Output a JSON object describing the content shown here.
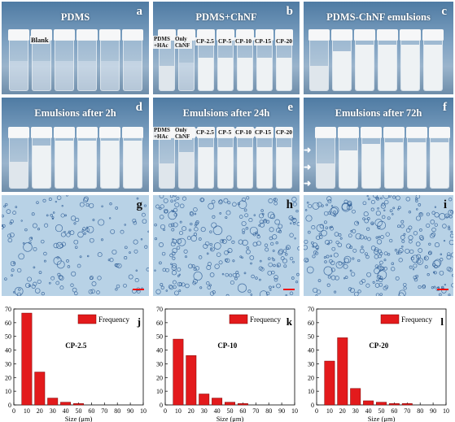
{
  "panels": {
    "a": {
      "title": "PDMS",
      "letter": "a",
      "vial_labels": [
        "Blank"
      ]
    },
    "b": {
      "title": "PDMS+ChNF",
      "letter": "b",
      "vial_labels": [
        "PDMS +HAc",
        "Only ChNF",
        "CP-2.5",
        "CP-5",
        "CP-10",
        "CP-15",
        "CP-20"
      ]
    },
    "c": {
      "title": "PDMS-ChNF emulsions",
      "letter": "c"
    },
    "d": {
      "title": "Emulsions after 2h",
      "letter": "d"
    },
    "e": {
      "title": "Emulsions after 24h",
      "letter": "e",
      "vial_labels": [
        "PDMS +HAc",
        "Only ChNF",
        "CP-2.5",
        "CP-5",
        "CP-10",
        "CP-15",
        "CP-20"
      ]
    },
    "f": {
      "title": "Emulsions after 72h",
      "letter": "f"
    },
    "g": {
      "letter": "g"
    },
    "h": {
      "letter": "h"
    },
    "i": {
      "letter": "i"
    }
  },
  "colors": {
    "bar": "#e31a1c",
    "scale_bar": "#ee1111",
    "micrograph_bg": "#b8d2e6",
    "bubble": "#1d4f8c"
  },
  "chart_data": [
    {
      "type": "bar",
      "panel": "j",
      "letter": "j",
      "annotation": "CP-2.5",
      "legend": "Frequency",
      "legend_position": "top-right",
      "x": [
        10,
        20,
        30,
        40,
        50,
        60,
        70,
        80,
        90,
        100
      ],
      "values": [
        67,
        24,
        5,
        2,
        1,
        0,
        0,
        0,
        0,
        0
      ],
      "xlabel": "",
      "ylabel": "",
      "xlim": [
        0,
        100
      ],
      "ylim": [
        0,
        70
      ],
      "xticks": [
        "0",
        "10",
        "20",
        "30",
        "40",
        "50",
        "60",
        "70",
        "80",
        "90",
        "10"
      ],
      "yticks": [
        "0",
        "10",
        "20",
        "30",
        "40",
        "50",
        "60",
        "70"
      ]
    },
    {
      "type": "bar",
      "panel": "k",
      "letter": "k",
      "annotation": "CP-10",
      "legend": "Frequency",
      "legend_position": "top-right",
      "x": [
        10,
        20,
        30,
        40,
        50,
        60,
        70,
        80,
        90,
        100
      ],
      "values": [
        48,
        36,
        8,
        5,
        2,
        1,
        0,
        0,
        0,
        0
      ],
      "xlabel": "Size (μm)",
      "ylabel": "",
      "xlim": [
        0,
        100
      ],
      "ylim": [
        0,
        70
      ],
      "xticks": [
        "0",
        "10",
        "20",
        "30",
        "40",
        "50",
        "60",
        "70",
        "80",
        "90",
        "10"
      ],
      "yticks": [
        "0",
        "10",
        "20",
        "30",
        "40",
        "50",
        "60",
        "70"
      ]
    },
    {
      "type": "bar",
      "panel": "l",
      "letter": "l",
      "annotation": "CP-20",
      "legend": "Frequency",
      "legend_position": "top-right",
      "x": [
        10,
        20,
        30,
        40,
        50,
        60,
        70,
        80,
        90,
        100
      ],
      "values": [
        32,
        49,
        12,
        3,
        2,
        1,
        1,
        0,
        0,
        0
      ],
      "xlabel": "Size (μm)",
      "ylabel": "",
      "xlim": [
        0,
        100
      ],
      "ylim": [
        0,
        70
      ],
      "xticks": [
        "0",
        "10",
        "20",
        "30",
        "40",
        "50",
        "60",
        "70",
        "80",
        "90",
        "10"
      ],
      "yticks": [
        "0",
        "10",
        "20",
        "30",
        "40",
        "50",
        "60",
        "70"
      ]
    }
  ],
  "chart_extra": {
    "size_label_j": "Size (μm)"
  }
}
